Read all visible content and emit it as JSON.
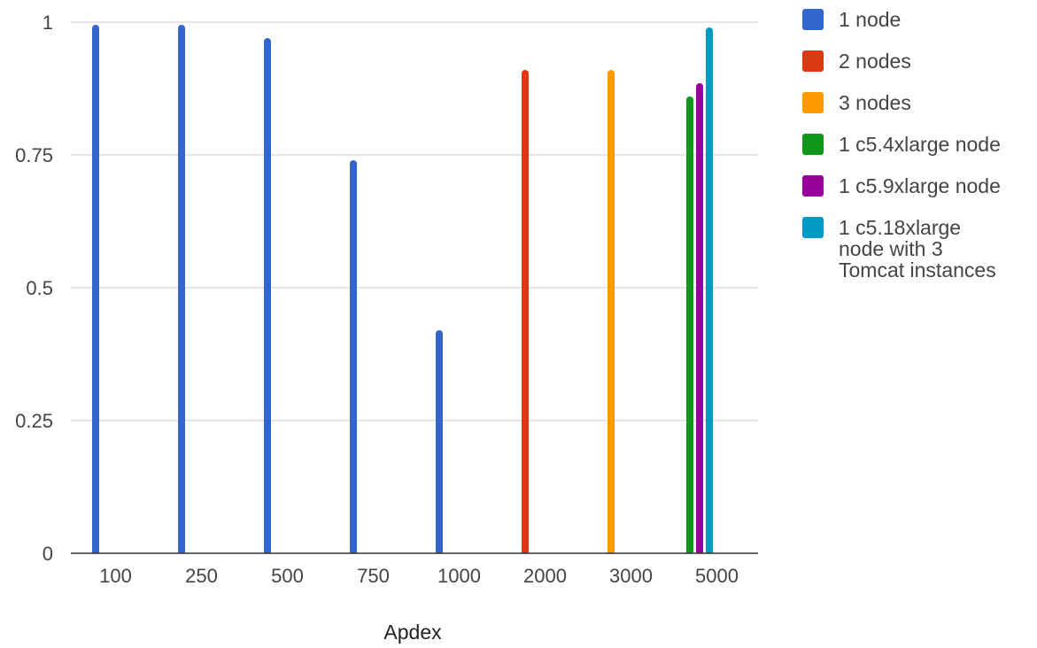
{
  "chart_data": {
    "type": "bar",
    "title": "",
    "xlabel": "Apdex",
    "ylabel": "",
    "ylim": [
      0,
      1
    ],
    "yticks": [
      "0",
      "0.25",
      "0.5",
      "0.75",
      "1"
    ],
    "ytick_values": [
      0,
      0.25,
      0.5,
      0.75,
      1
    ],
    "grid": true,
    "legend_position": "right",
    "categories": [
      "100",
      "250",
      "500",
      "750",
      "1000",
      "2000",
      "3000",
      "5000"
    ],
    "series": [
      {
        "name": "1 node",
        "color": "#3366cc",
        "values": [
          0.995,
          0.995,
          0.97,
          0.74,
          0.42,
          null,
          null,
          null
        ]
      },
      {
        "name": "2 nodes",
        "color": "#dc3912",
        "values": [
          null,
          null,
          null,
          null,
          null,
          0.91,
          null,
          null
        ]
      },
      {
        "name": "3 nodes",
        "color": "#ff9900",
        "values": [
          null,
          null,
          null,
          null,
          null,
          null,
          0.91,
          null
        ]
      },
      {
        "name": "1 c5.4xlarge node",
        "color": "#109618",
        "values": [
          null,
          null,
          null,
          null,
          null,
          null,
          null,
          0.86
        ]
      },
      {
        "name": "1 c5.9xlarge node",
        "color": "#990099",
        "values": [
          null,
          null,
          null,
          null,
          null,
          null,
          null,
          0.885
        ]
      },
      {
        "name": "1 c5.18xlarge node with 3 Tomcat instances",
        "color": "#0099c6",
        "values": [
          null,
          null,
          null,
          null,
          null,
          null,
          null,
          0.99
        ]
      }
    ]
  }
}
